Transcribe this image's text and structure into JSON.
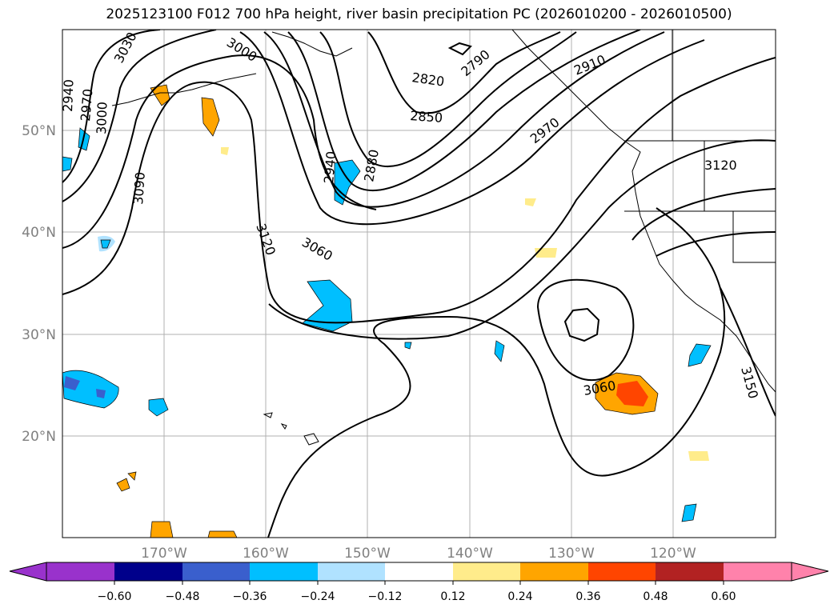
{
  "title": "2025123100 F012 700 hPa height, river basin precipitation PC (2026010200 - 2026010500)",
  "map": {
    "lat_labels": [
      "50°N",
      "40°N",
      "30°N",
      "20°N"
    ],
    "lon_labels": [
      "170°W",
      "160°W",
      "150°W",
      "140°W",
      "130°W",
      "120°W"
    ],
    "contour_labels": [
      "3030",
      "3000",
      "2940",
      "2970",
      "3000",
      "2820",
      "2790",
      "2910",
      "2850",
      "2970",
      "2940",
      "2880",
      "3090",
      "3120",
      "3060",
      "3120",
      "3060",
      "3150"
    ],
    "gridline_color": "#b0b0b0",
    "contour_color": "#000000",
    "coastline_color": "#000000"
  },
  "colorbar": {
    "ticks": [
      "−0.60",
      "−0.48",
      "−0.36",
      "−0.24",
      "−0.12",
      "0.12",
      "0.24",
      "0.36",
      "0.48",
      "0.60"
    ],
    "colors": [
      "#9932cc",
      "#00008b",
      "#3a5fcd",
      "#00bfff",
      "#b0e2ff",
      "#ffffff",
      "#ffec8b",
      "#ffa500",
      "#ff4500",
      "#b22222",
      "#ff82ab"
    ]
  }
}
